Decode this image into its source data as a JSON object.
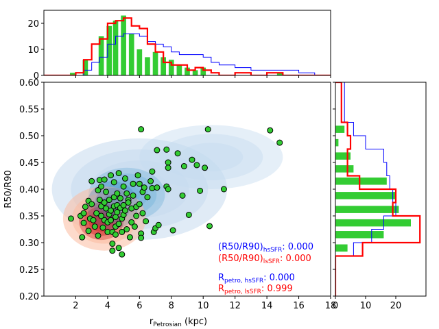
{
  "chart_data": {
    "type": "scatter",
    "main": {
      "xlabel": "r",
      "xlabel_sub": "Petrosian",
      "xlabel_unit": " (kpc)",
      "ylabel": "R50/R90",
      "xlim": [
        0,
        18
      ],
      "ylim": [
        0.2,
        0.6
      ],
      "xticks": [
        2,
        4,
        6,
        8,
        10,
        12,
        14,
        16,
        18
      ],
      "yticks": [
        0.2,
        0.25,
        0.3,
        0.35,
        0.4,
        0.45,
        0.5,
        0.55,
        0.6
      ],
      "xtick_labels": [
        "2",
        "4",
        "6",
        "8",
        "10",
        "12",
        "14",
        "16",
        "18"
      ],
      "ytick_labels": [
        "0.20",
        "0.25",
        "0.30",
        "0.35",
        "0.40",
        "0.45",
        "0.50",
        "0.55",
        "0.60"
      ],
      "points_color": "#33cc33",
      "points": [
        [
          1.7,
          0.345
        ],
        [
          2.3,
          0.35
        ],
        [
          2.4,
          0.31
        ],
        [
          2.5,
          0.355
        ],
        [
          2.5,
          0.337
        ],
        [
          2.6,
          0.367
        ],
        [
          2.8,
          0.322
        ],
        [
          2.8,
          0.378
        ],
        [
          2.9,
          0.345
        ],
        [
          3.0,
          0.415
        ],
        [
          3.0,
          0.372
        ],
        [
          3.1,
          0.342
        ],
        [
          3.2,
          0.33
        ],
        [
          3.3,
          0.355
        ],
        [
          3.4,
          0.313
        ],
        [
          3.4,
          0.398
        ],
        [
          3.5,
          0.417
        ],
        [
          3.5,
          0.38
        ],
        [
          3.6,
          0.405
        ],
        [
          3.6,
          0.368
        ],
        [
          3.6,
          0.35
        ],
        [
          3.7,
          0.328
        ],
        [
          3.8,
          0.342
        ],
        [
          3.8,
          0.375
        ],
        [
          3.8,
          0.418
        ],
        [
          3.9,
          0.364
        ],
        [
          3.9,
          0.395
        ],
        [
          4.0,
          0.32
        ],
        [
          4.0,
          0.338
        ],
        [
          4.1,
          0.353
        ],
        [
          4.1,
          0.38
        ],
        [
          4.2,
          0.426
        ],
        [
          4.2,
          0.342
        ],
        [
          4.2,
          0.36
        ],
        [
          4.3,
          0.32
        ],
        [
          4.3,
          0.298
        ],
        [
          4.3,
          0.285
        ],
        [
          4.4,
          0.413
        ],
        [
          4.4,
          0.385
        ],
        [
          4.4,
          0.368
        ],
        [
          4.5,
          0.33
        ],
        [
          4.5,
          0.348
        ],
        [
          4.5,
          0.315
        ],
        [
          4.6,
          0.392
        ],
        [
          4.6,
          0.37
        ],
        [
          4.6,
          0.357
        ],
        [
          4.7,
          0.43
        ],
        [
          4.7,
          0.335
        ],
        [
          4.7,
          0.29
        ],
        [
          4.8,
          0.383
        ],
        [
          4.8,
          0.365
        ],
        [
          4.9,
          0.278
        ],
        [
          4.9,
          0.32
        ],
        [
          4.9,
          0.345
        ],
        [
          5.0,
          0.405
        ],
        [
          5.0,
          0.37
        ],
        [
          5.0,
          0.352
        ],
        [
          5.1,
          0.36
        ],
        [
          5.1,
          0.42
        ],
        [
          5.2,
          0.325
        ],
        [
          5.2,
          0.392
        ],
        [
          5.3,
          0.38
        ],
        [
          5.3,
          0.375
        ],
        [
          5.4,
          0.31
        ],
        [
          5.5,
          0.338
        ],
        [
          5.5,
          0.364
        ],
        [
          5.6,
          0.388
        ],
        [
          5.6,
          0.41
        ],
        [
          5.7,
          0.33
        ],
        [
          5.8,
          0.35
        ],
        [
          5.8,
          0.367
        ],
        [
          5.9,
          0.426
        ],
        [
          6.0,
          0.372
        ],
        [
          6.0,
          0.41
        ],
        [
          6.1,
          0.512
        ],
        [
          6.1,
          0.317
        ],
        [
          6.1,
          0.309
        ],
        [
          6.2,
          0.355
        ],
        [
          6.2,
          0.395
        ],
        [
          6.3,
          0.403
        ],
        [
          6.4,
          0.34
        ],
        [
          6.5,
          0.385
        ],
        [
          6.7,
          0.415
        ],
        [
          6.8,
          0.433
        ],
        [
          6.8,
          0.402
        ],
        [
          6.9,
          0.32
        ],
        [
          7.0,
          0.327
        ],
        [
          7.1,
          0.473
        ],
        [
          7.1,
          0.403
        ],
        [
          7.2,
          0.333
        ],
        [
          7.7,
          0.405
        ],
        [
          7.7,
          0.474
        ],
        [
          7.8,
          0.45
        ],
        [
          7.8,
          0.44
        ],
        [
          7.8,
          0.4
        ],
        [
          8.1,
          0.323
        ],
        [
          8.4,
          0.467
        ],
        [
          8.7,
          0.388
        ],
        [
          8.8,
          0.443
        ],
        [
          9.1,
          0.352
        ],
        [
          9.3,
          0.455
        ],
        [
          9.6,
          0.445
        ],
        [
          9.8,
          0.397
        ],
        [
          10.1,
          0.44
        ],
        [
          10.3,
          0.512
        ],
        [
          10.4,
          0.331
        ],
        [
          11.3,
          0.4
        ],
        [
          14.2,
          0.51
        ],
        [
          14.8,
          0.487
        ]
      ],
      "annotations": [
        {
          "text_main": "(R50/R90)",
          "text_sub": "hsSFR",
          "text_value": ":   0.000",
          "color": "#0000ff"
        },
        {
          "text_main": "(R50/R90)",
          "text_sub": "lsSFR",
          "text_value": ":   0.000",
          "color": "#ff0000"
        },
        {
          "text_main": "R",
          "text_sub": "petro, hsSFR",
          "text_value": ":   0.000",
          "color": "#0000ff"
        },
        {
          "text_main": "R",
          "text_sub": "petro, lsSFR",
          "text_value": ":   0.999",
          "color": "#ff0000"
        }
      ]
    },
    "top_hist": {
      "xlim": [
        0,
        18
      ],
      "ylim": [
        0,
        25
      ],
      "yticks": [
        0,
        10,
        20
      ],
      "ytick_labels": [
        "0",
        "10",
        "20"
      ],
      "bin_edges": [
        0,
        1,
        2,
        2.5,
        3,
        3.5,
        4,
        4.5,
        5,
        5.5,
        6,
        6.5,
        7,
        7.5,
        8,
        8.5,
        9,
        9.5,
        10,
        10.5,
        11,
        12,
        13,
        14,
        15,
        16,
        17,
        18
      ],
      "bar_centers": [
        1.8,
        2.6,
        3.6,
        4.1,
        4.5,
        5.0,
        5.5,
        6.0,
        6.5,
        7.0,
        7.5,
        8.0,
        8.5,
        9.0,
        9.5,
        10.0,
        14.8
      ],
      "bar_values": [
        1,
        6,
        15,
        19,
        21,
        23,
        16,
        10,
        7,
        9,
        7,
        6,
        4,
        3,
        2,
        3,
        1
      ],
      "blue_step": [
        0,
        0,
        0,
        2,
        5,
        7,
        12,
        15,
        16,
        16,
        15,
        13,
        12,
        11,
        9,
        8,
        8,
        8,
        7,
        5,
        4,
        3,
        2,
        2,
        2,
        1,
        0
      ],
      "red_step": [
        0,
        0,
        1,
        6,
        12,
        14,
        20,
        21,
        22,
        19,
        18,
        12,
        9,
        5,
        4,
        4,
        2,
        3,
        2,
        1,
        0,
        1,
        0,
        1,
        0,
        0,
        0
      ]
    },
    "right_hist": {
      "ylim": [
        0.2,
        0.6
      ],
      "xlim": [
        0,
        30
      ],
      "xticks": [
        0,
        10,
        20
      ],
      "xtick_labels": [
        "0",
        "10",
        "20"
      ],
      "bin_edges": [
        0.2,
        0.275,
        0.3,
        0.325,
        0.35,
        0.375,
        0.4,
        0.425,
        0.45,
        0.475,
        0.5,
        0.525,
        0.6
      ],
      "bar_centers": [
        0.29,
        0.315,
        0.337,
        0.362,
        0.388,
        0.415,
        0.438,
        0.462,
        0.487,
        0.512
      ],
      "bar_values": [
        4,
        16,
        25,
        21,
        20,
        17,
        6,
        5,
        1,
        3
      ],
      "blue_step": [
        0,
        6,
        12,
        16,
        20,
        19,
        18,
        17,
        16,
        10,
        6,
        3
      ],
      "red_step": [
        0,
        9,
        28,
        28,
        19,
        20,
        8,
        4,
        4,
        5,
        4,
        2
      ]
    },
    "colors": {
      "red": "#ff0000",
      "blue": "#0000ff",
      "green": "#33cc33"
    }
  }
}
